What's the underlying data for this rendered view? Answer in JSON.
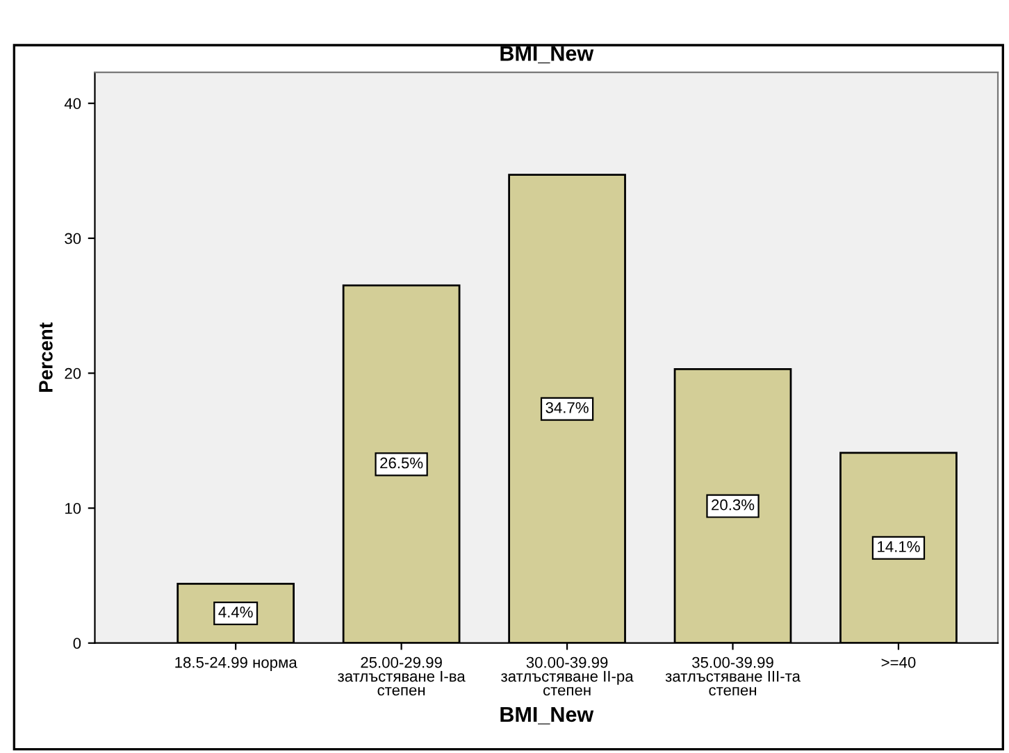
{
  "chart_data": {
    "type": "bar",
    "title": "BMI_New",
    "xlabel": "BMI_New",
    "ylabel": "Percent",
    "categories": [
      "18.5-24.99 норма",
      "25.00-29.99\nзатлъстяване I-ва\nстепен",
      "30.00-39.99\nзатлъстяване II-ра\nстепен",
      "35.00-39.99\nзатлъстяване III-та\nстепен",
      ">=40"
    ],
    "values": [
      4.4,
      26.5,
      34.7,
      20.3,
      14.1
    ],
    "value_labels": [
      "4.4%",
      "26.5%",
      "34.7%",
      "20.3%",
      "14.1%"
    ],
    "color": "#d3ce97",
    "ylim": [
      0,
      42.3
    ],
    "yticks": [
      0,
      10,
      20,
      30,
      40
    ],
    "grid": false
  }
}
